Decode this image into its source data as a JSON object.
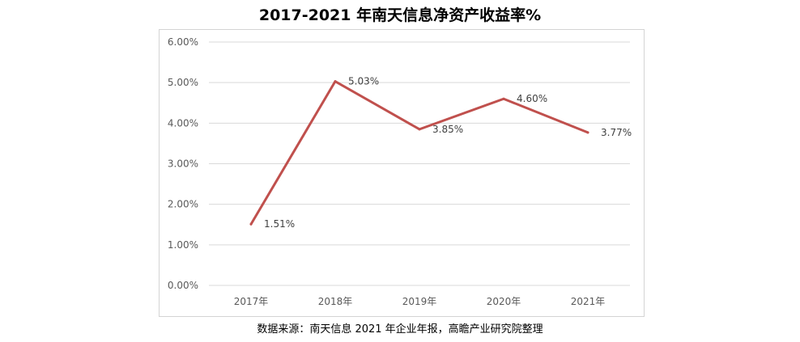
{
  "title": "2017-2021 年南天信息净资产收益率%",
  "source": "数据来源：南天信息 2021 年企业年报，高瞻产业研究院整理",
  "colors": {
    "line": "#c0504d",
    "grid": "#d9d9d9",
    "tick_text": "#595959",
    "label_text": "#404040"
  },
  "chart_data": {
    "type": "line",
    "title": "2017-2021 年南天信息净资产收益率%",
    "categories": [
      "2017年",
      "2018年",
      "2019年",
      "2020年",
      "2021年"
    ],
    "series": [
      {
        "values": [
          1.51,
          5.03,
          3.85,
          4.6,
          3.77
        ],
        "data_labels": [
          "1.51%",
          "5.03%",
          "3.85%",
          "4.60%",
          "3.77%"
        ]
      }
    ],
    "y_ticks": [
      0,
      1,
      2,
      3,
      4,
      5,
      6
    ],
    "y_tick_labels": [
      "0.00%",
      "1.00%",
      "2.00%",
      "3.00%",
      "4.00%",
      "5.00%",
      "6.00%"
    ],
    "ylim": [
      0,
      6
    ],
    "grid": true,
    "legend": "none"
  }
}
